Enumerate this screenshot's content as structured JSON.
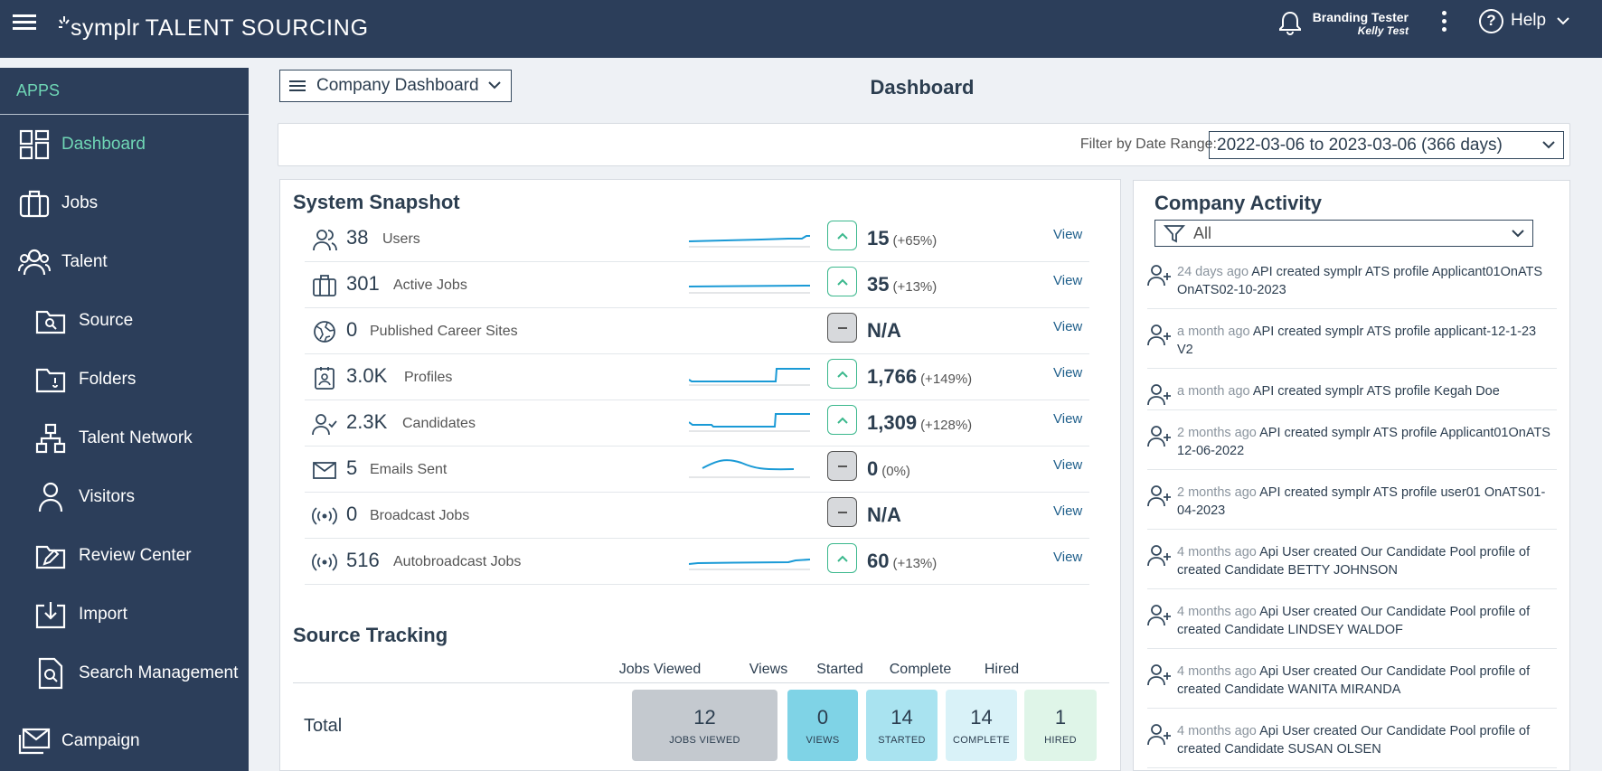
{
  "header": {
    "brand": "symplr",
    "product": "TALENT SOURCING",
    "user_name": "Branding Tester",
    "user_sub": "Kelly Test",
    "help_label": "Help"
  },
  "sidebar": {
    "apps_label": "APPS",
    "items": [
      {
        "label": "Dashboard",
        "icon": "dashboard-icon"
      },
      {
        "label": "Jobs",
        "icon": "briefcase-icon"
      },
      {
        "label": "Talent",
        "icon": "people-icon"
      },
      {
        "label": "Source",
        "icon": "folder-search-icon"
      },
      {
        "label": "Folders",
        "icon": "folder-icon"
      },
      {
        "label": "Talent Network",
        "icon": "network-icon"
      },
      {
        "label": "Visitors",
        "icon": "person-icon"
      },
      {
        "label": "Review Center",
        "icon": "folder-edit-icon"
      },
      {
        "label": "Import",
        "icon": "import-icon"
      },
      {
        "label": "Search Management",
        "icon": "document-search-icon"
      },
      {
        "label": "Campaign",
        "icon": "mail-icon"
      }
    ]
  },
  "toolbar": {
    "view_select": "Company Dashboard",
    "page_title": "Dashboard",
    "filter_label": "Filter by Date Range:",
    "filter_value": "2022-03-06 to 2023-03-06 (366 days)"
  },
  "snapshot": {
    "title": "System Snapshot",
    "view_label": "View",
    "rows": [
      {
        "count": "38",
        "label": "Users",
        "delta": "15",
        "pct": "(+65%)",
        "trend": "up"
      },
      {
        "count": "301",
        "label": "Active Jobs",
        "delta": "35",
        "pct": "(+13%)",
        "trend": "up"
      },
      {
        "count": "0",
        "label": "Published Career Sites",
        "delta": "N/A",
        "pct": "",
        "trend": "flat"
      },
      {
        "count": "3.0K",
        "label": "Profiles",
        "delta": "1,766",
        "pct": "(+149%)",
        "trend": "up"
      },
      {
        "count": "2.3K",
        "label": "Candidates",
        "delta": "1,309",
        "pct": "(+128%)",
        "trend": "up"
      },
      {
        "count": "5",
        "label": "Emails Sent",
        "delta": "0",
        "pct": "(0%)",
        "trend": "flat"
      },
      {
        "count": "0",
        "label": "Broadcast Jobs",
        "delta": "N/A",
        "pct": "",
        "trend": "flat"
      },
      {
        "count": "516",
        "label": "Autobroadcast Jobs",
        "delta": "60",
        "pct": "(+13%)",
        "trend": "up"
      }
    ]
  },
  "source_tracking": {
    "title": "Source Tracking",
    "headers": [
      "Jobs Viewed",
      "Views",
      "Started",
      "Complete",
      "Hired"
    ],
    "row_label": "Total",
    "boxes": [
      {
        "value": "12",
        "label": "JOBS VIEWED",
        "color": "#c4c9cf"
      },
      {
        "value": "0",
        "label": "VIEWS",
        "color": "#7fd3e6"
      },
      {
        "value": "14",
        "label": "STARTED",
        "color": "#a9e3f0"
      },
      {
        "value": "14",
        "label": "COMPLETE",
        "color": "#d9f2f8"
      },
      {
        "value": "1",
        "label": "HIRED",
        "color": "#dff5e8"
      }
    ]
  },
  "activity": {
    "title": "Company Activity",
    "filter_value": "All",
    "items": [
      {
        "time": "24 days ago",
        "text": "API created symplr ATS profile Applicant01OnATS OnATS02-10-2023"
      },
      {
        "time": "a month ago",
        "text": "API created symplr ATS profile applicant-12-1-23 V2"
      },
      {
        "time": "a month ago",
        "text": "API created symplr ATS profile Kegah Doe"
      },
      {
        "time": "2 months ago",
        "text": "API created symplr ATS profile Applicant01OnATS 12-06-2022"
      },
      {
        "time": "2 months ago",
        "text": "API created symplr ATS profile user01 OnATS01-04-2023"
      },
      {
        "time": "4 months ago",
        "text": "Api User created Our Candidate Pool profile of created Candidate BETTY JOHNSON"
      },
      {
        "time": "4 months ago",
        "text": "Api User created Our Candidate Pool profile of created Candidate LINDSEY WALDOF"
      },
      {
        "time": "4 months ago",
        "text": "Api User created Our Candidate Pool profile of created Candidate WANITA MIRANDA"
      },
      {
        "time": "4 months ago",
        "text": "Api User created Our Candidate Pool profile of created Candidate SUSAN OLSEN"
      }
    ]
  },
  "colors": {
    "topbar": "#2c3e5a",
    "accent": "#6fd6b5",
    "trend_up": "#3bb88d",
    "sparkline": "#1a9ad6"
  }
}
